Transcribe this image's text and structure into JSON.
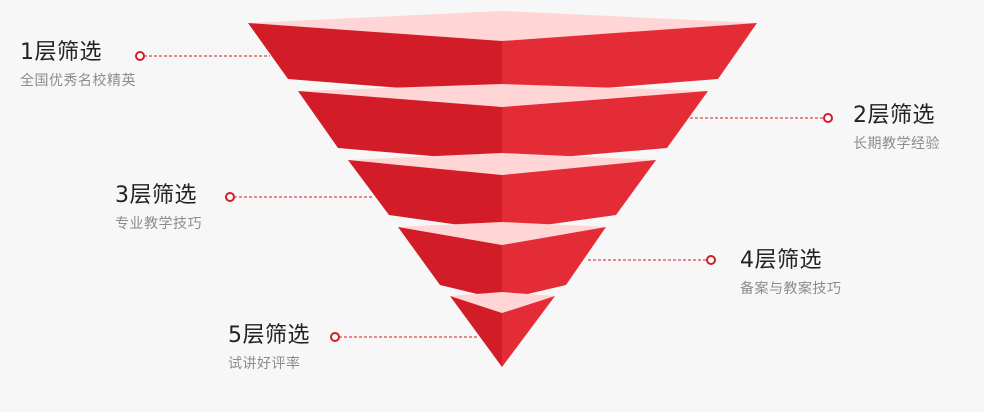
{
  "colors": {
    "layer_left": "#d21c27",
    "layer_right": "#e42c37",
    "layer_top": "#ffd5d5",
    "connector": "#d21c27",
    "title_text": "#222222",
    "subtitle_text": "#8c8c8c"
  },
  "layers": [
    {
      "title": "1层筛选",
      "subtitle": "全国优秀名校精英"
    },
    {
      "title": "2层筛选",
      "subtitle": "长期教学经验"
    },
    {
      "title": "3层筛选",
      "subtitle": "专业教学技巧"
    },
    {
      "title": "4层筛选",
      "subtitle": "备案与教案技巧"
    },
    {
      "title": "5层筛选",
      "subtitle": "试讲好评率"
    }
  ]
}
